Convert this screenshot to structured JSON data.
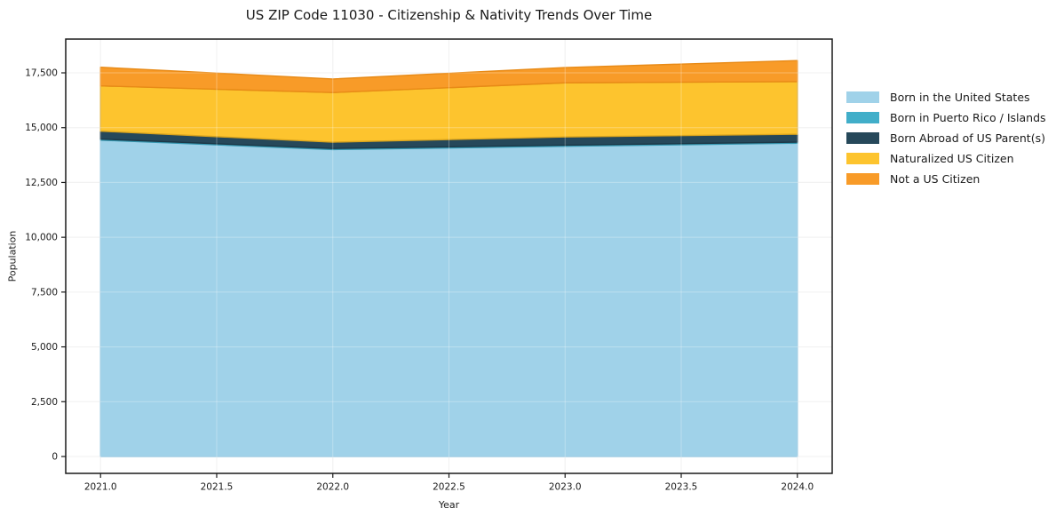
{
  "title": "US ZIP Code 11030 - Citizenship & Nativity Trends Over Time",
  "chart_data": {
    "type": "area",
    "stacked": true,
    "title": "US ZIP Code 11030 - Citizenship & Nativity Trends Over Time",
    "xlabel": "Year",
    "ylabel": "Population",
    "x": [
      2021,
      2022,
      2023,
      2024
    ],
    "series": [
      {
        "name": "Born in the United States",
        "color": "#a0d2e9",
        "edge": "#8ac2de",
        "values": [
          14430,
          14000,
          14150,
          14290
        ]
      },
      {
        "name": "Born in Puerto Rico / Islands",
        "color": "#41aec9",
        "edge": "#3698b1",
        "values": [
          50,
          50,
          50,
          50
        ]
      },
      {
        "name": "Born Abroad of US Parent(s)",
        "color": "#26485a",
        "edge": "#1c3847",
        "values": [
          360,
          290,
          375,
          360
        ]
      },
      {
        "name": "Naturalized US Citizen",
        "color": "#fdc42e",
        "edge": "#dba51d",
        "values": [
          2065,
          2260,
          2470,
          2400
        ]
      },
      {
        "name": "Not a US Citizen",
        "color": "#f89b28",
        "edge": "#e88a16",
        "values": [
          850,
          620,
          695,
          960
        ]
      }
    ],
    "totals_by_year": [
      17755,
      17220,
      17740,
      18060
    ],
    "xlim": [
      2020.85,
      2024.15
    ],
    "ylim": [
      -770,
      19040
    ],
    "xticks": [
      2021.0,
      2021.5,
      2022.0,
      2022.5,
      2023.0,
      2023.5,
      2024.0
    ],
    "xtick_labels": [
      "2021.0",
      "2021.5",
      "2022.0",
      "2022.5",
      "2023.0",
      "2023.5",
      "2024.0"
    ],
    "yticks": [
      0,
      2500,
      5000,
      7500,
      10000,
      12500,
      15000,
      17500
    ],
    "ytick_labels": [
      "0",
      "2,500",
      "5,000",
      "7,500",
      "10,000",
      "12,500",
      "15,000",
      "17,500"
    ],
    "grid": true,
    "grid_color": "#ebebeb",
    "spine_color": "#1a1a1a",
    "tick_label_color": "#1a1a1a",
    "legend_position": "right-outside"
  }
}
